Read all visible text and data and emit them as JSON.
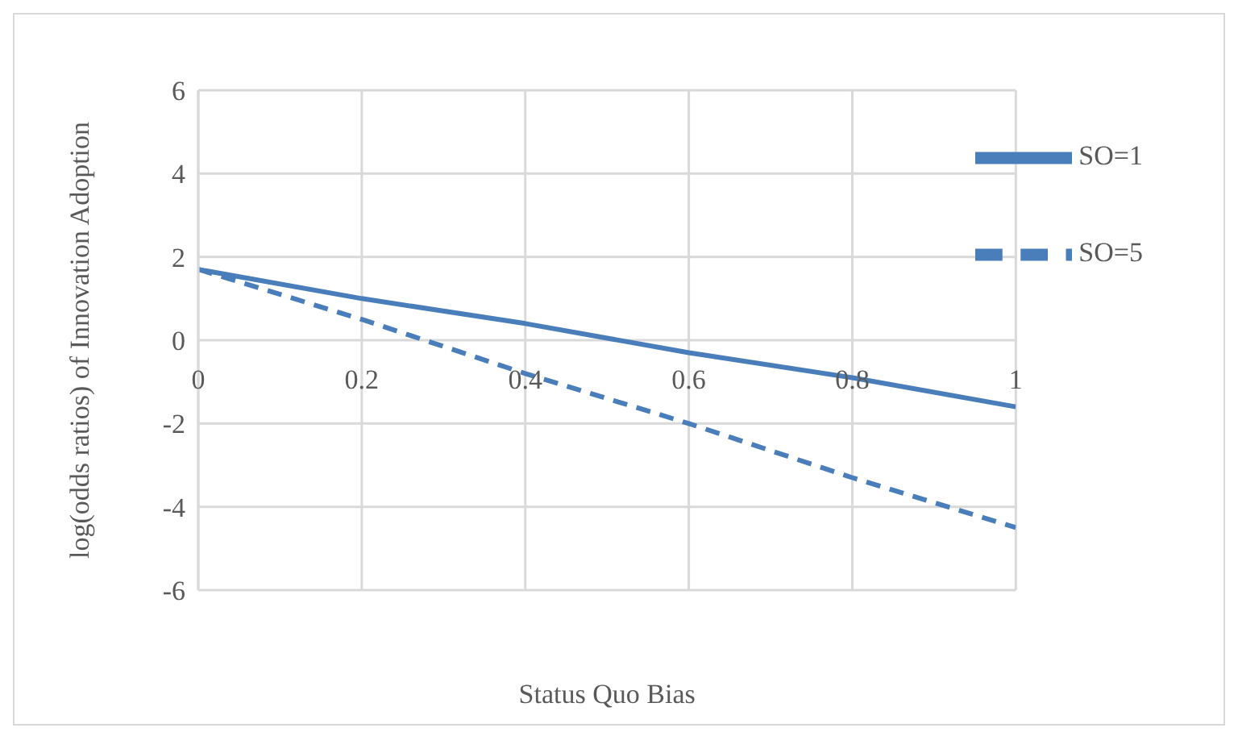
{
  "chart_data": {
    "type": "line",
    "xlabel": "Status Quo Bias",
    "ylabel": "log(odds ratios)  of Innovation Adoption",
    "x": [
      0,
      0.2,
      0.4,
      0.6,
      0.8,
      1
    ],
    "series": [
      {
        "name": "SO=1",
        "color": "#4a7ebb",
        "values": [
          1.7,
          1.0,
          0.4,
          -0.3,
          -0.9,
          -1.6
        ],
        "line_style": "solid"
      },
      {
        "name": "SO=5",
        "color": "#4a7ebb",
        "values": [
          1.7,
          0.5,
          -0.8,
          -2.0,
          -3.3,
          -4.5
        ],
        "line_style": "dashed"
      }
    ],
    "xlim": [
      0,
      1
    ],
    "xticks": [
      0,
      {
        "value": 0.2,
        "label": "0.2"
      },
      {
        "value": 0.4,
        "label": "0.4"
      },
      {
        "value": 0.6,
        "label": "0.6"
      },
      {
        "value": 0.8,
        "label": "0.8"
      },
      1
    ],
    "ylim": [
      -6,
      6
    ],
    "yticks": [
      -6,
      -4,
      -2,
      0,
      2,
      4,
      6
    ],
    "grid": true,
    "legend": "top right",
    "marker": "none"
  }
}
